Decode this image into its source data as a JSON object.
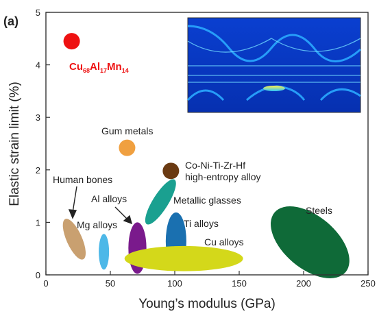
{
  "panel_label": "(a)",
  "chart_data": {
    "type": "scatter",
    "xlabel": "Young’s modulus (GPa)",
    "ylabel": "Elastic strain limit (%)",
    "xlim": [
      0,
      250
    ],
    "ylim": [
      0,
      5
    ],
    "xticks": [
      0,
      50,
      100,
      150,
      200,
      250
    ],
    "yticks": [
      0,
      1,
      2,
      3,
      4,
      5
    ],
    "grid": false,
    "points": [
      {
        "name": "Cu68Al17Mn14",
        "x": 20,
        "y": 4.45,
        "color": "#ee1111"
      },
      {
        "name": "Gum metals",
        "x": 63,
        "y": 2.42,
        "color": "#f0a040"
      },
      {
        "name": "Co-Ni-Ti-Zr-Hf high-entropy alloy",
        "x": 97,
        "y": 1.98,
        "color": "#6a3a12"
      }
    ],
    "regions": [
      {
        "name": "Human bones",
        "x_center": 22,
        "y_center": 0.68,
        "x_radius": 6,
        "y_radius": 0.42,
        "rotation": -24,
        "color": "#c9a070"
      },
      {
        "name": "Mg alloys",
        "x_center": 45,
        "y_center": 0.44,
        "x_radius": 4,
        "y_radius": 0.34,
        "rotation": 0,
        "color": "#4db8e8"
      },
      {
        "name": "Al alloys",
        "x_center": 71,
        "y_center": 0.51,
        "x_radius": 7,
        "y_radius": 0.49,
        "rotation": 0,
        "color": "#7a1a8c"
      },
      {
        "name": "Metallic glasses",
        "x_center": 89,
        "y_center": 1.39,
        "x_radius": 6,
        "y_radius": 0.5,
        "rotation": 32,
        "color": "#1aa090"
      },
      {
        "name": "Ti alloys",
        "x_center": 101,
        "y_center": 0.64,
        "x_radius": 8,
        "y_radius": 0.55,
        "rotation": 0,
        "color": "#1a70b0"
      },
      {
        "name": "Cu alloys",
        "x_center": 107,
        "y_center": 0.31,
        "x_radius": 46,
        "y_radius": 0.24,
        "rotation": 0,
        "color": "#d4d81a"
      },
      {
        "name": "Steels",
        "x_center": 205,
        "y_center": 0.62,
        "x_radius": 36,
        "y_radius": 0.5,
        "rotation": 40,
        "color": "#0f6a38"
      }
    ],
    "labels": {
      "cu_alloy_main": "Cu",
      "cu_alloy_sub1": "68",
      "cu_alloy_mid": "Al",
      "cu_alloy_sub2": "17",
      "cu_alloy_end": "Mn",
      "cu_alloy_sub3": "14",
      "gum": "Gum metals",
      "hea_line1": "Co-Ni-Ti-Zr-Hf",
      "hea_line2": "high-entropy alloy",
      "bones": "Human bones",
      "al": "Al alloys",
      "mg": "Mg alloys",
      "mg_glasses": "Metallic glasses",
      "ti": "Ti alloys",
      "cu": "Cu alloys",
      "steels": "Steels"
    }
  }
}
